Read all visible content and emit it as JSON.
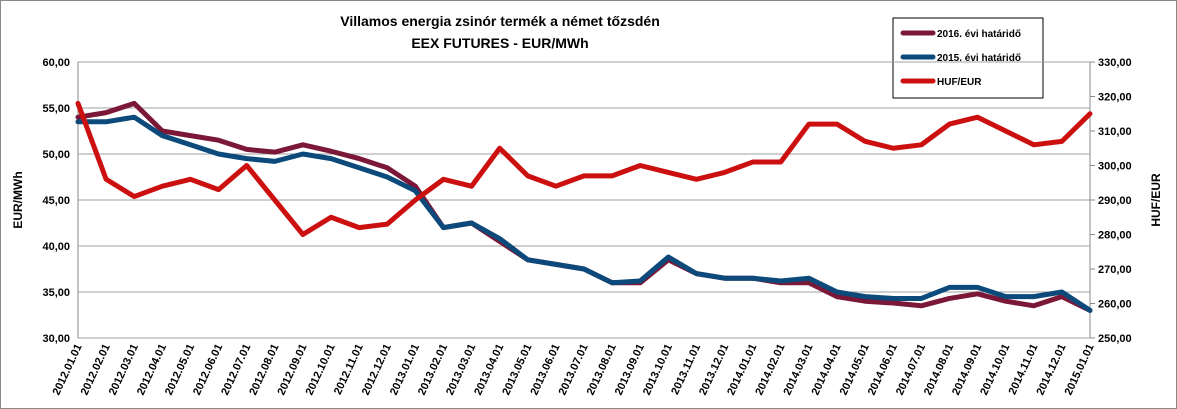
{
  "chart_data": {
    "type": "line",
    "title": "Villamos energia zsinór termék a német tőzsdén",
    "subtitle": "EEX FUTURES - EUR/MWh",
    "y_label": "EUR/MWh",
    "y2_label": "HUF/EUR",
    "categories": [
      "2012.01.01",
      "2012.02.01",
      "2012.03.01",
      "2012.04.01",
      "2012.05.01",
      "2012.06.01",
      "2012.07.01",
      "2012.08.01",
      "2012.09.01",
      "2012.10.01",
      "2012.11.01",
      "2012.12.01",
      "2013.01.01",
      "2013.02.01",
      "2013.03.01",
      "2013.04.01",
      "2013.05.01",
      "2013.06.01",
      "2013.07.01",
      "2013.08.01",
      "2013.09.01",
      "2013.10.01",
      "2013.11.01",
      "2013.12.01",
      "2014.01.01",
      "2014.02.01",
      "2014.03.01",
      "2014.04.01",
      "2014.05.01",
      "2014.06.01",
      "2014.07.01",
      "2014.08.01",
      "2014.09.01",
      "2014.10.01",
      "2014.11.01",
      "2014.12.01",
      "2015.01.01"
    ],
    "series": [
      {
        "name": "2016. évi határidő",
        "color": "#7b1838",
        "values": [
          54,
          54.5,
          55.5,
          52.5,
          52,
          51.5,
          50.5,
          50.2,
          51,
          50.3,
          49.5,
          48.5,
          46.5,
          42,
          42.5,
          40.5,
          38.5,
          38,
          37.5,
          36,
          36,
          38.5,
          37,
          36.5,
          36.5,
          36,
          36,
          34.5,
          34,
          33.8,
          33.5,
          34.3,
          34.8,
          34,
          33.5,
          34.5,
          33
        ]
      },
      {
        "name": "2015. évi határidő",
        "color": "#0b4a7a",
        "values": [
          53.5,
          53.5,
          54,
          52,
          51,
          50,
          49.5,
          49.2,
          50,
          49.5,
          48.5,
          47.5,
          46,
          42,
          42.5,
          40.8,
          38.5,
          38,
          37.5,
          36,
          36.2,
          38.8,
          37,
          36.5,
          36.5,
          36.2,
          36.5,
          35,
          34.5,
          34.3,
          34.3,
          35.5,
          35.5,
          34.5,
          34.5,
          35,
          33
        ]
      },
      {
        "name": "HUF/EUR",
        "color": "#cc1010",
        "axis": "y2",
        "values": [
          318,
          296,
          291,
          294,
          296,
          293,
          300,
          290,
          280,
          285,
          282,
          283,
          290,
          296,
          294,
          305,
          297,
          294,
          297,
          297,
          300,
          298,
          296,
          298,
          301,
          301,
          312,
          312,
          307,
          305,
          306,
          312,
          314,
          310,
          306,
          307,
          315
        ]
      }
    ],
    "ylim": [
      30,
      60
    ],
    "yticks": [
      {
        "value": 30,
        "label": "30,00"
      },
      {
        "value": 35,
        "label": "35,00"
      },
      {
        "value": 40,
        "label": "40,00"
      },
      {
        "value": 45,
        "label": "45,00"
      },
      {
        "value": 50,
        "label": "50,00"
      },
      {
        "value": 55,
        "label": "55,00"
      },
      {
        "value": 60,
        "label": "60,00"
      }
    ],
    "y2lim": [
      250,
      330
    ],
    "y2ticks": [
      {
        "value": 250,
        "label": "250,00"
      },
      {
        "value": 260,
        "label": "260,00"
      },
      {
        "value": 270,
        "label": "270,00"
      },
      {
        "value": 280,
        "label": "280,00"
      },
      {
        "value": 290,
        "label": "290,00"
      },
      {
        "value": 300,
        "label": "300,00"
      },
      {
        "value": 310,
        "label": "310,00"
      },
      {
        "value": 320,
        "label": "320,00"
      },
      {
        "value": 330,
        "label": "330,00"
      }
    ],
    "grid": true
  }
}
